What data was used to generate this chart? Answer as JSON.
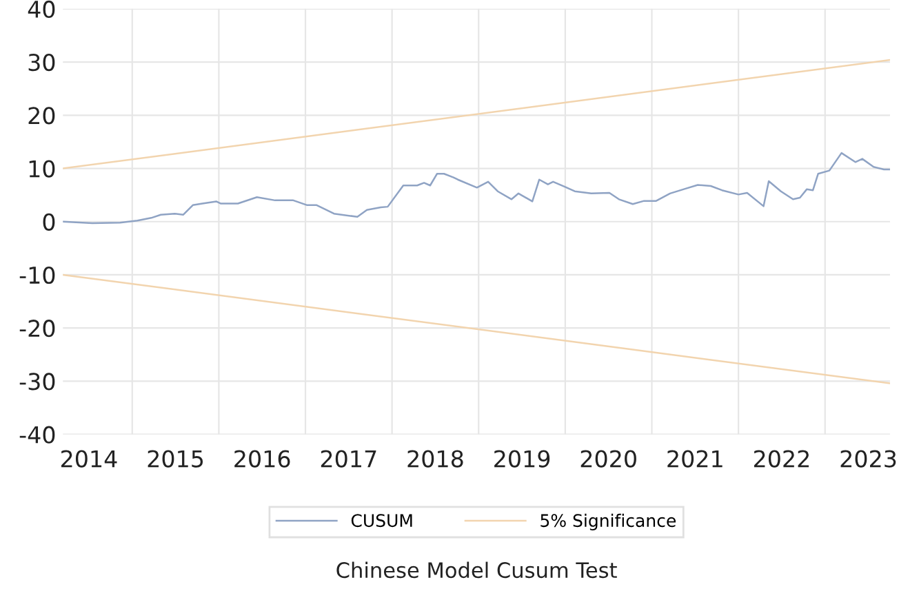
{
  "chart_data": {
    "type": "line",
    "title": "Chinese Model Cusum Test",
    "xlim": [
      2014.2,
      2023.75
    ],
    "ylim": [
      -40,
      40
    ],
    "yticks": [
      -40,
      -30,
      -20,
      -10,
      0,
      10,
      20,
      30,
      40
    ],
    "xticks": [
      {
        "value": 2014.5,
        "label": "2014"
      },
      {
        "value": 2015.5,
        "label": "2015"
      },
      {
        "value": 2016.5,
        "label": "2016"
      },
      {
        "value": 2017.5,
        "label": "2017"
      },
      {
        "value": 2018.5,
        "label": "2018"
      },
      {
        "value": 2019.5,
        "label": "2019"
      },
      {
        "value": 2020.5,
        "label": "2020"
      },
      {
        "value": 2021.5,
        "label": "2021"
      },
      {
        "value": 2022.5,
        "label": "2022"
      },
      {
        "value": 2023.5,
        "label": "2023"
      },
      {
        "value": 2015,
        "label": null
      },
      {
        "value": 2016,
        "label": null
      },
      {
        "value": 2017,
        "label": null
      },
      {
        "value": 2018,
        "label": null
      },
      {
        "value": 2019,
        "label": null
      },
      {
        "value": 2020,
        "label": null
      },
      {
        "value": 2021,
        "label": null
      },
      {
        "value": 2022,
        "label": null
      },
      {
        "value": 2023,
        "label": null
      }
    ],
    "grid": true,
    "legend": "bottom",
    "marker": "none",
    "line_style": "solid",
    "series": [
      {
        "name": "CUSUM",
        "color": "#8fa3c4",
        "x": [
          2014.2,
          2014.54,
          2014.86,
          2015.06,
          2015.22,
          2015.33,
          2015.49,
          2015.59,
          2015.7,
          2015.81,
          2015.97,
          2016.02,
          2016.22,
          2016.44,
          2016.65,
          2016.86,
          2017.02,
          2017.13,
          2017.33,
          2017.6,
          2017.71,
          2017.87,
          2017.95,
          2018.13,
          2018.29,
          2018.37,
          2018.44,
          2018.52,
          2018.6,
          2018.71,
          2018.76,
          2018.98,
          2019.11,
          2019.22,
          2019.38,
          2019.46,
          2019.62,
          2019.7,
          2019.8,
          2019.86,
          2019.99,
          2020.11,
          2020.3,
          2020.51,
          2020.62,
          2020.78,
          2020.91,
          2021.05,
          2021.21,
          2021.37,
          2021.53,
          2021.68,
          2021.81,
          2022.0,
          2022.1,
          2022.29,
          2022.35,
          2022.49,
          2022.63,
          2022.71,
          2022.79,
          2022.86,
          2022.92,
          2023.05,
          2023.19,
          2023.35,
          2023.43,
          2023.56,
          2023.68,
          2023.75
        ],
        "values": [
          0,
          -0.3,
          -0.2,
          0.2,
          0.7,
          1.3,
          1.5,
          1.3,
          3.1,
          3.4,
          3.8,
          3.4,
          3.4,
          4.6,
          4.0,
          4.0,
          3.1,
          3.1,
          1.5,
          0.9,
          2.2,
          2.7,
          2.8,
          6.8,
          6.8,
          7.3,
          6.8,
          9.0,
          9.0,
          8.3,
          7.9,
          6.4,
          7.5,
          5.7,
          4.2,
          5.3,
          3.8,
          7.9,
          7.0,
          7.5,
          6.6,
          5.7,
          5.3,
          5.4,
          4.2,
          3.3,
          3.9,
          3.9,
          5.3,
          6.1,
          6.9,
          6.7,
          5.9,
          5.1,
          5.4,
          2.9,
          7.6,
          5.7,
          4.2,
          4.5,
          6.1,
          5.9,
          9.0,
          9.6,
          12.9,
          11.2,
          11.8,
          10.3,
          9.8,
          9.8
        ]
      },
      {
        "name": "5% Significance",
        "color": "#f2d4ae",
        "x": [
          2014.2,
          2023.75
        ],
        "values": [
          10,
          30.4
        ]
      },
      {
        "color": "#f2d4ae",
        "x": [
          2014.2,
          2023.75
        ],
        "values": [
          -10,
          -30.4
        ]
      }
    ]
  }
}
